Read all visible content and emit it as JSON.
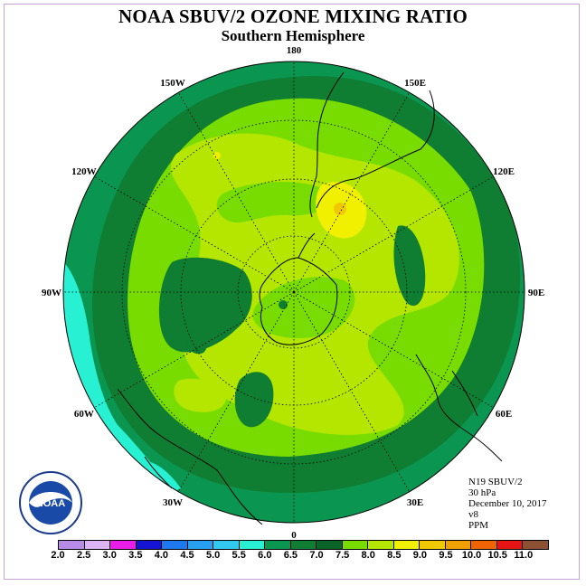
{
  "title": "NOAA SBUV/2 OZONE MIXING RATIO",
  "subtitle": "Southern Hemisphere",
  "info": {
    "instrument": "N19 SBUV/2",
    "level": "30 hPa",
    "date": "December 10, 2017",
    "version": "v8",
    "units": "PPM"
  },
  "logo": {
    "text": "NOAA",
    "ring_text_top": "NATIONAL OCEANIC AND ATMOSPHERIC ADMINISTRATION",
    "ring_text_bottom": "U.S. DEPARTMENT OF COMMERCE"
  },
  "longitude_labels": [
    {
      "label": "90W",
      "angle": 180
    },
    {
      "label": "60W",
      "angle": 150
    },
    {
      "label": "30W",
      "angle": 120
    },
    {
      "label": "0",
      "angle": 90
    },
    {
      "label": "30E",
      "angle": 60
    },
    {
      "label": "60E",
      "angle": 30
    },
    {
      "label": "90E",
      "angle": 0
    },
    {
      "label": "120E",
      "angle": -30
    },
    {
      "label": "150E",
      "angle": -60
    },
    {
      "label": "180",
      "angle": -90
    },
    {
      "label": "150W",
      "angle": -120
    },
    {
      "label": "120W",
      "angle": -150
    }
  ],
  "colorbar": {
    "labels": [
      "2.0",
      "2.5",
      "3.0",
      "3.5",
      "4.0",
      "4.5",
      "5.0",
      "5.5",
      "6.0",
      "6.5",
      "7.0",
      "7.5",
      "8.0",
      "8.5",
      "9.0",
      "9.5",
      "10.0",
      "10.5",
      "11.0"
    ],
    "colors": [
      "#b98be8",
      "#dcb4f4",
      "#e81ee8",
      "#1414d2",
      "#1e78f0",
      "#28a0f0",
      "#32c8f0",
      "#28f0d2",
      "#0a9650",
      "#0f7d32",
      "#0a6428",
      "#78dc00",
      "#b4e600",
      "#f0f000",
      "#f0c800",
      "#f0a000",
      "#f06400",
      "#e61414",
      "#8c5032"
    ]
  },
  "map_colors": {
    "c_6_0": "#28f0d2",
    "c_6_5": "#0a9650",
    "c_7_0": "#0f7d32",
    "c_7_5": "#78dc00",
    "c_8_0": "#b4e600",
    "c_8_5": "#f0f000",
    "c_9_0": "#f0c800",
    "c_9_5": "#f0a000"
  }
}
